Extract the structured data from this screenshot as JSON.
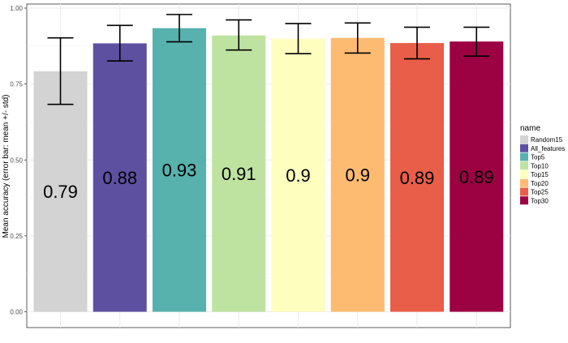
{
  "chart_data": {
    "type": "bar",
    "title": "",
    "xlabel": "",
    "ylabel": "Mean accuracy (error bar: mean +/- std)",
    "ylim": [
      0,
      1.0
    ],
    "y_ticks": [
      "0.00",
      "0.25",
      "0.50",
      "0.75",
      "1.00"
    ],
    "grid": true,
    "legend": {
      "title": "name",
      "placement": "right"
    },
    "categories": [
      "Random15",
      "All_features",
      "Top5",
      "Top10",
      "Top15",
      "Top20",
      "Top25",
      "Top30"
    ],
    "values": [
      0.792,
      0.884,
      0.934,
      0.91,
      0.899,
      0.902,
      0.885,
      0.89
    ],
    "value_labels": [
      "0.79",
      "0.88",
      "0.93",
      "0.91",
      "0.9",
      "0.9",
      "0.89",
      "0.89"
    ],
    "error_low": [
      0.683,
      0.826,
      0.889,
      0.862,
      0.85,
      0.852,
      0.833,
      0.842
    ],
    "error_high": [
      0.902,
      0.943,
      0.979,
      0.961,
      0.949,
      0.951,
      0.937,
      0.937
    ],
    "colors": [
      "#d3d3d3",
      "#5e50a1",
      "#57b1ad",
      "#bee3a0",
      "#feffbf",
      "#fdbb72",
      "#e85e48",
      "#9c0142"
    ]
  }
}
